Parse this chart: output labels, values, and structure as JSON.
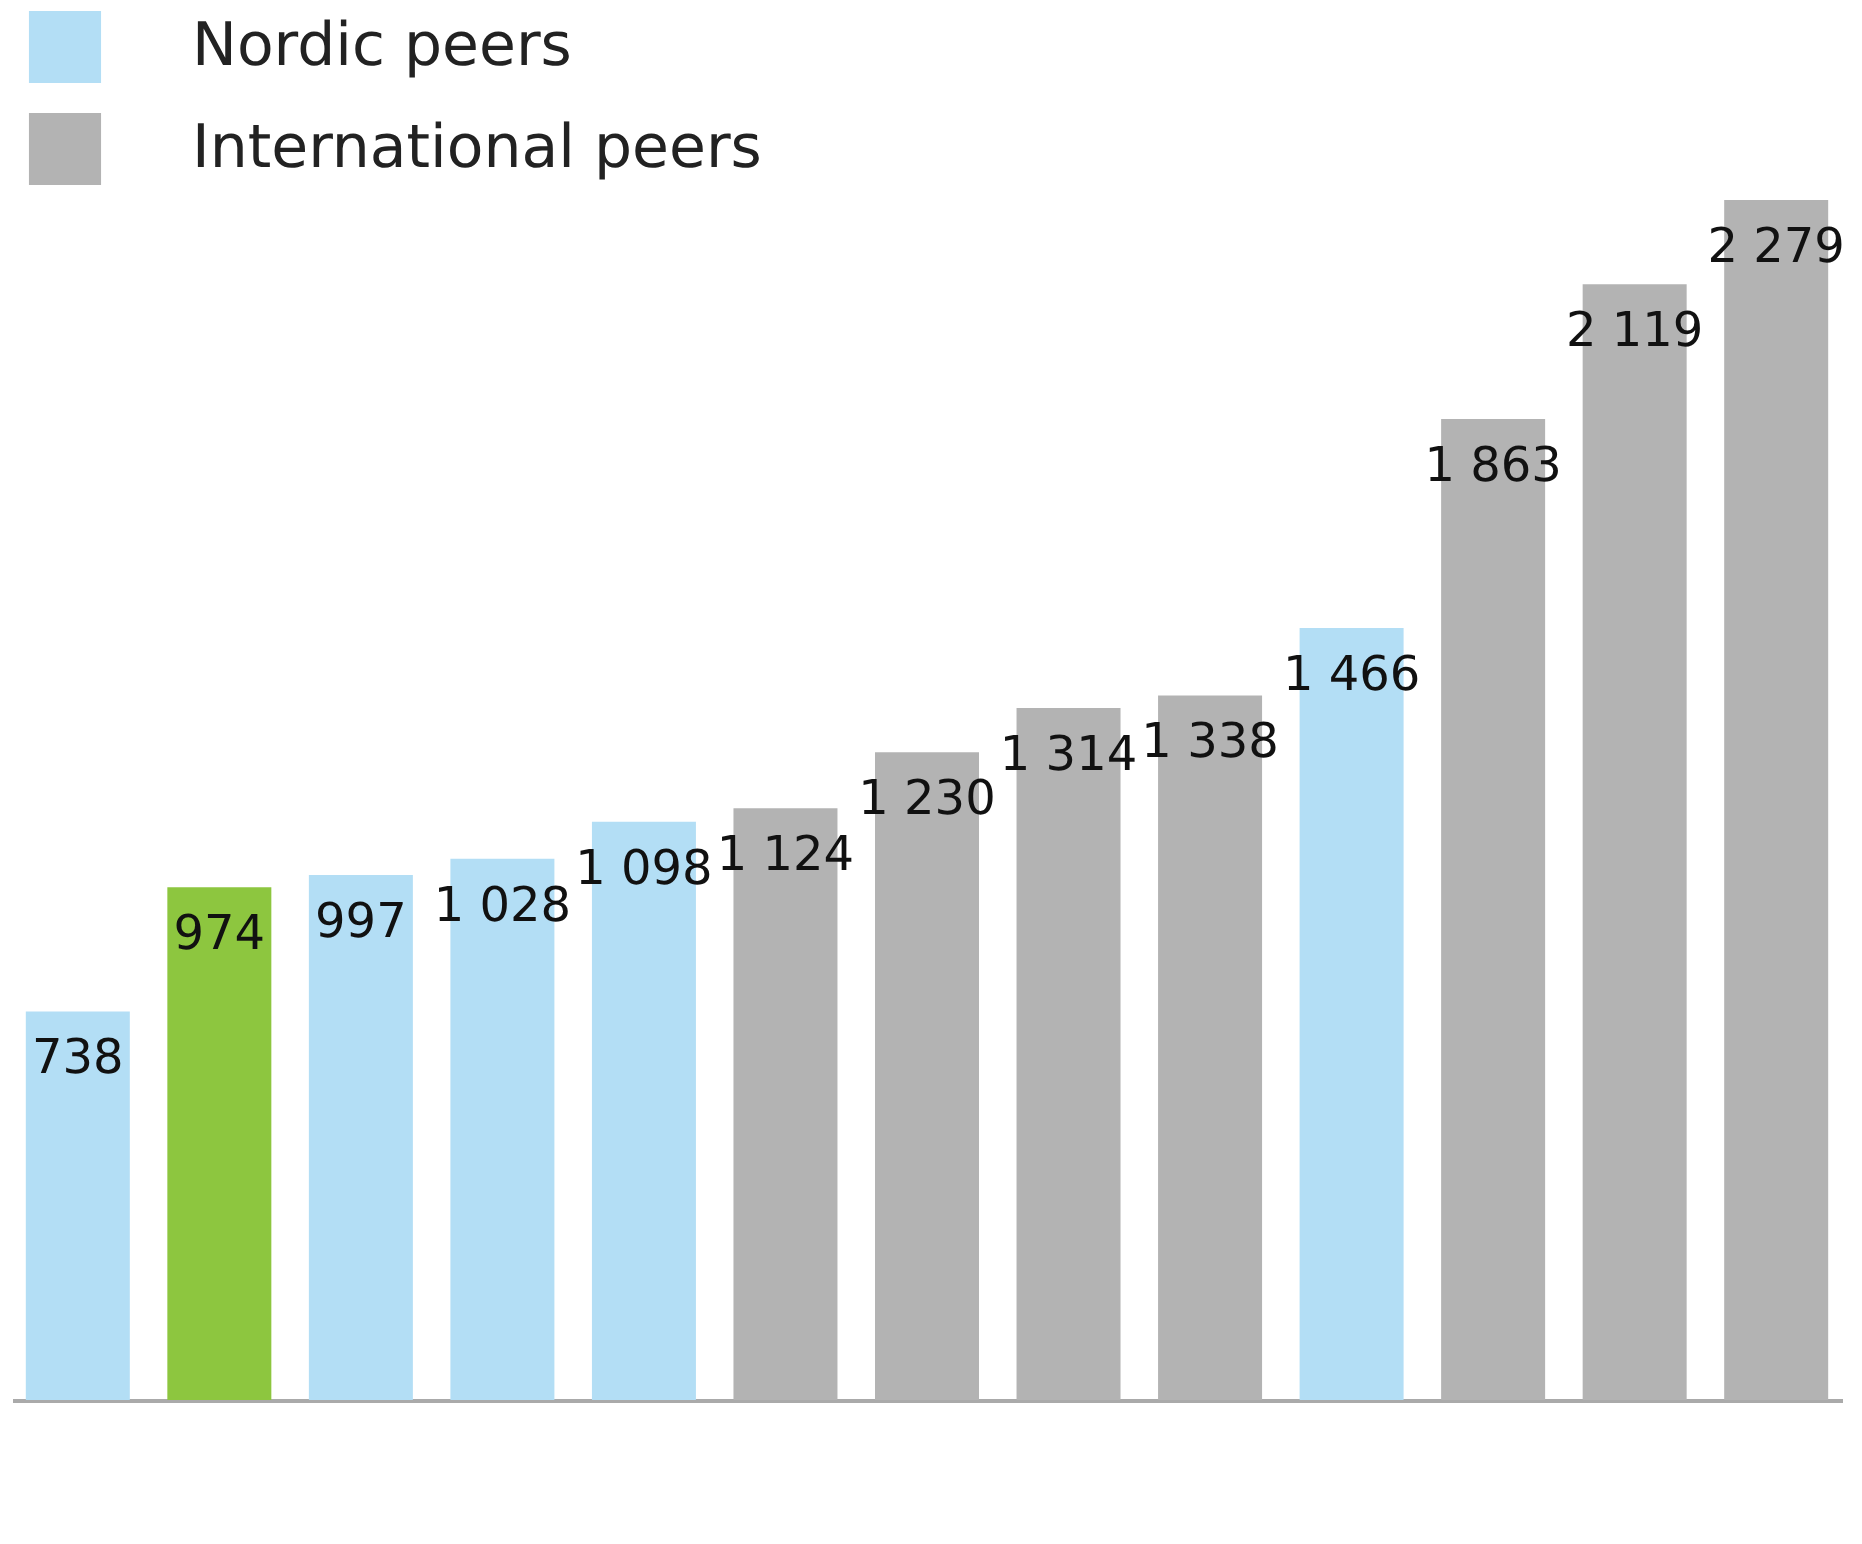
{
  "chart_data": {
    "type": "bar",
    "categories": [
      null,
      null,
      null,
      null,
      null,
      null,
      null,
      null,
      null,
      null,
      null,
      null,
      null
    ],
    "series": [
      {
        "name": "Nordic peers",
        "color": "#b3def5",
        "values": [
          738,
          null,
          997,
          1028,
          1098,
          null,
          null,
          null,
          null,
          1466,
          null,
          null,
          null
        ],
        "value_labels": [
          "738",
          null,
          "997",
          "1 028",
          "1 098",
          null,
          null,
          null,
          null,
          "1 466",
          null,
          null,
          null
        ]
      },
      {
        "name": "International peers",
        "color": "#b3b3b3",
        "values": [
          null,
          null,
          null,
          null,
          null,
          1124,
          1230,
          1314,
          1338,
          null,
          1863,
          2119,
          2279
        ],
        "value_labels": [
          null,
          null,
          null,
          null,
          null,
          "1 124",
          "1 230",
          "1 314",
          "1 338",
          null,
          "1 863",
          "2 119",
          "2 279"
        ]
      },
      {
        "color": "#8dc63f",
        "values": [
          null,
          974,
          null,
          null,
          null,
          null,
          null,
          null,
          null,
          null,
          null,
          null,
          null
        ],
        "value_labels": [
          null,
          "974",
          null,
          null,
          null,
          null,
          null,
          null,
          null,
          null,
          null,
          null,
          null
        ]
      }
    ],
    "stacked": true,
    "legend": "top left"
  }
}
